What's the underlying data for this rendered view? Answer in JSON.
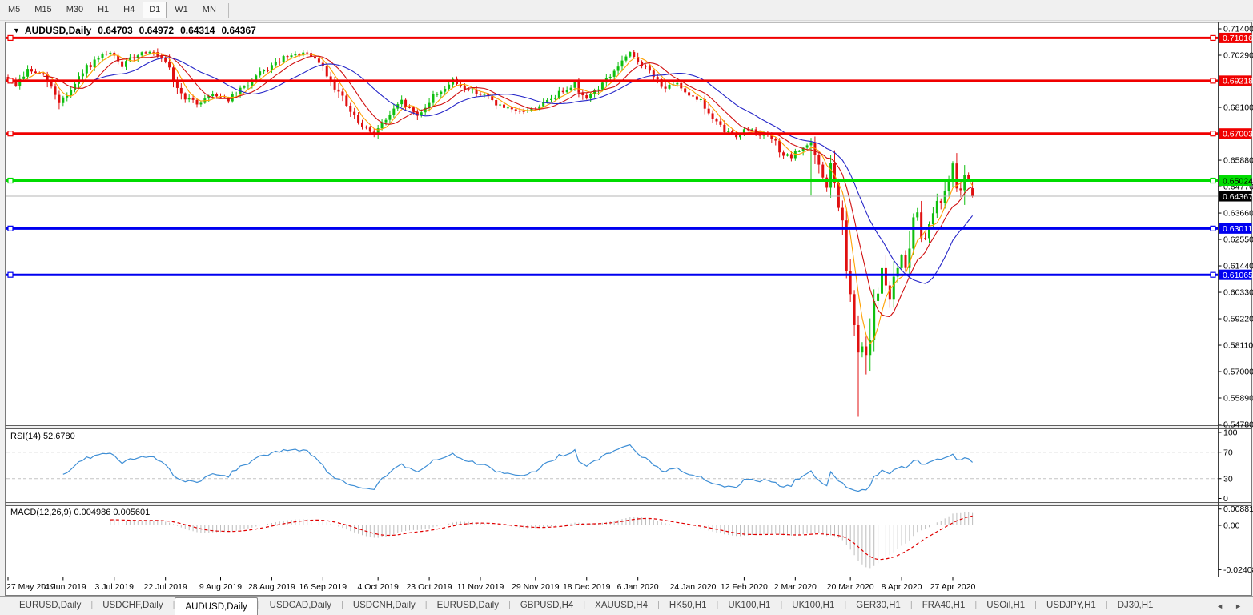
{
  "toolbar": {
    "timeframes": [
      {
        "label": "M5",
        "active": false
      },
      {
        "label": "M15",
        "active": false
      },
      {
        "label": "M30",
        "active": false
      },
      {
        "label": "H1",
        "active": false
      },
      {
        "label": "H4",
        "active": false
      },
      {
        "label": "D1",
        "active": true
      },
      {
        "label": "W1",
        "active": false
      },
      {
        "label": "MN",
        "active": false
      }
    ]
  },
  "chart": {
    "symbol_title": "AUDUSD,Daily",
    "ohlc": {
      "open": "0.64703",
      "high": "0.64972",
      "low": "0.64314",
      "close": "0.64367"
    },
    "rsi_label": "RSI(14) 52.6780",
    "macd_label": "MACD(12,26,9) 0.004986 0.005601"
  },
  "chart_data": {
    "type": "candlestick",
    "symbol": "AUDUSD",
    "timeframe": "Daily",
    "bars": 246,
    "current_bar": {
      "open": 0.64703,
      "high": 0.64972,
      "low": 0.64314,
      "close": 0.64367
    },
    "price_axis": {
      "min": 0.5478,
      "max": 0.714,
      "ticks": [
        "0.71400",
        "0.70290",
        "0.68100",
        "0.65880",
        "0.64770",
        "0.63660",
        "0.62550",
        "0.61440",
        "0.60330",
        "0.59220",
        "0.58110",
        "0.57000",
        "0.55890",
        "0.54780"
      ]
    },
    "x_axis_labels": [
      {
        "index": 0,
        "label": "27 May 2019"
      },
      {
        "index": 14,
        "label": "14 Jun 2019"
      },
      {
        "index": 27,
        "label": "3 Jul 2019"
      },
      {
        "index": 40,
        "label": "22 Jul 2019"
      },
      {
        "index": 54,
        "label": "9 Aug 2019"
      },
      {
        "index": 67,
        "label": "28 Aug 2019"
      },
      {
        "index": 80,
        "label": "16 Sep 2019"
      },
      {
        "index": 94,
        "label": "4 Oct 2019"
      },
      {
        "index": 107,
        "label": "23 Oct 2019"
      },
      {
        "index": 120,
        "label": "11 Nov 2019"
      },
      {
        "index": 134,
        "label": "29 Nov 2019"
      },
      {
        "index": 147,
        "label": "18 Dec 2019"
      },
      {
        "index": 160,
        "label": "6 Jan 2020"
      },
      {
        "index": 174,
        "label": "24 Jan 2020"
      },
      {
        "index": 187,
        "label": "12 Feb 2020"
      },
      {
        "index": 200,
        "label": "2 Mar 2020"
      },
      {
        "index": 214,
        "label": "20 Mar 2020"
      },
      {
        "index": 227,
        "label": "8 Apr 2020"
      },
      {
        "index": 240,
        "label": "27 Apr 2020"
      }
    ],
    "close_anchors": [
      [
        0,
        0.6925
      ],
      [
        2,
        0.6905
      ],
      [
        5,
        0.6965
      ],
      [
        9,
        0.6945
      ],
      [
        13,
        0.6835
      ],
      [
        16,
        0.688
      ],
      [
        20,
        0.6975
      ],
      [
        24,
        0.7025
      ],
      [
        26,
        0.7035
      ],
      [
        29,
        0.6985
      ],
      [
        33,
        0.7035
      ],
      [
        36,
        0.7048
      ],
      [
        40,
        0.6995
      ],
      [
        44,
        0.686
      ],
      [
        48,
        0.6825
      ],
      [
        52,
        0.6868
      ],
      [
        56,
        0.6842
      ],
      [
        60,
        0.6895
      ],
      [
        64,
        0.695
      ],
      [
        70,
        0.7015
      ],
      [
        75,
        0.7038
      ],
      [
        79,
        0.7
      ],
      [
        83,
        0.69
      ],
      [
        87,
        0.679
      ],
      [
        90,
        0.6725
      ],
      [
        93,
        0.6702
      ],
      [
        96,
        0.676
      ],
      [
        100,
        0.6832
      ],
      [
        104,
        0.6775
      ],
      [
        108,
        0.6855
      ],
      [
        113,
        0.6918
      ],
      [
        117,
        0.6885
      ],
      [
        121,
        0.6862
      ],
      [
        125,
        0.6815
      ],
      [
        129,
        0.6788
      ],
      [
        133,
        0.6802
      ],
      [
        137,
        0.6835
      ],
      [
        141,
        0.6882
      ],
      [
        144,
        0.6912
      ],
      [
        146,
        0.6845
      ],
      [
        149,
        0.6878
      ],
      [
        153,
        0.6942
      ],
      [
        156,
        0.7002
      ],
      [
        158,
        0.7032
      ],
      [
        161,
        0.6992
      ],
      [
        164,
        0.6938
      ],
      [
        167,
        0.6892
      ],
      [
        170,
        0.6906
      ],
      [
        173,
        0.6868
      ],
      [
        176,
        0.6838
      ],
      [
        179,
        0.6758
      ],
      [
        182,
        0.6712
      ],
      [
        185,
        0.6692
      ],
      [
        188,
        0.6722
      ],
      [
        191,
        0.67
      ],
      [
        194,
        0.6678
      ],
      [
        197,
        0.6612
      ],
      [
        199,
        0.6598
      ],
      [
        202,
        0.6645
      ],
      [
        204,
        0.666
      ],
      [
        206,
        0.6545
      ],
      [
        208,
        0.6482
      ],
      [
        209,
        0.6558
      ],
      [
        210,
        0.6478
      ],
      [
        211,
        0.6395
      ],
      [
        212,
        0.6288
      ],
      [
        213,
        0.6142
      ],
      [
        214,
        0.5978
      ],
      [
        215,
        0.5872
      ],
      [
        216,
        0.5772
      ],
      [
        217,
        0.5808
      ],
      [
        218,
        0.5738
      ],
      [
        219,
        0.5902
      ],
      [
        220,
        0.5968
      ],
      [
        221,
        0.6042
      ],
      [
        222,
        0.6128
      ],
      [
        223,
        0.6048
      ],
      [
        224,
        0.5982
      ],
      [
        225,
        0.6092
      ],
      [
        226,
        0.6158
      ],
      [
        227,
        0.6178
      ],
      [
        228,
        0.6132
      ],
      [
        229,
        0.6252
      ],
      [
        230,
        0.6318
      ],
      [
        231,
        0.6368
      ],
      [
        232,
        0.6292
      ],
      [
        233,
        0.6262
      ],
      [
        234,
        0.6322
      ],
      [
        235,
        0.6385
      ],
      [
        236,
        0.6442
      ],
      [
        237,
        0.6405
      ],
      [
        238,
        0.6468
      ],
      [
        239,
        0.6528
      ],
      [
        240,
        0.6558
      ],
      [
        241,
        0.6498
      ],
      [
        242,
        0.6462
      ],
      [
        243,
        0.6552
      ],
      [
        244,
        0.6518
      ],
      [
        245,
        0.64367
      ]
    ],
    "extremes": [
      {
        "index": 158,
        "high": 0.7045
      },
      {
        "index": 204,
        "high": 0.6682,
        "low": 0.644
      },
      {
        "index": 216,
        "low": 0.551
      },
      {
        "index": 218,
        "low": 0.5688
      }
    ],
    "levels": [
      {
        "price": 0.71016,
        "label": "0.71016",
        "color": "#f00000",
        "text": "#ffffff"
      },
      {
        "price": 0.69218,
        "label": "0.69218",
        "color": "#f00000",
        "text": "#ffffff"
      },
      {
        "price": 0.67003,
        "label": "0.67003",
        "color": "#f00000",
        "text": "#ffffff"
      },
      {
        "price": 0.65024,
        "label": "0.65024",
        "color": "#00dc00",
        "text": "#000000"
      },
      {
        "price": 0.63011,
        "label": "0.63011",
        "color": "#0000f0",
        "text": "#ffffff"
      },
      {
        "price": 0.61065,
        "label": "0.61065",
        "color": "#0000f0",
        "text": "#ffffff"
      }
    ],
    "bid_line": {
      "price": 0.64367,
      "label": "0.64367",
      "line_color": "#b4b4b4",
      "box_color": "#000000",
      "text": "#ffffff"
    },
    "moving_averages": [
      {
        "period": 5,
        "color": "#ffa000",
        "name": "fast"
      },
      {
        "period": 10,
        "color": "#d01010",
        "name": "medium"
      },
      {
        "period": 21,
        "color": "#2626c8",
        "name": "slow"
      }
    ],
    "rsi": {
      "period": 14,
      "value": "52.6780",
      "color": "#3f8fd6",
      "level_lines": [
        70,
        30
      ],
      "axis_ticks": [
        "100",
        "70",
        "30",
        "0"
      ],
      "scale_max": 100,
      "scale_min": 0
    },
    "macd": {
      "fast": 12,
      "slow": 26,
      "signal_period": 9,
      "main_value": "0.004986",
      "signal_value": "0.005601",
      "axis_ticks": [
        "0.008815",
        "0.00",
        "-0.024082"
      ],
      "scale_max": 0.008815,
      "scale_min": -0.024082,
      "histogram_color": "#bdbdbd",
      "signal_color": "#e00000"
    }
  },
  "tabs": {
    "items": [
      {
        "label": "EURUSD,Daily",
        "active": false
      },
      {
        "label": "USDCHF,Daily",
        "active": false
      },
      {
        "label": "AUDUSD,Daily",
        "active": true
      },
      {
        "label": "USDCAD,Daily",
        "active": false
      },
      {
        "label": "USDCNH,Daily",
        "active": false
      },
      {
        "label": "EURUSD,Daily",
        "active": false
      },
      {
        "label": "GBPUSD,H4",
        "active": false
      },
      {
        "label": "XAUUSD,H4",
        "active": false
      },
      {
        "label": "HK50,H1",
        "active": false
      },
      {
        "label": "UK100,H1",
        "active": false
      },
      {
        "label": "UK100,H1",
        "active": false
      },
      {
        "label": "GER30,H1",
        "active": false
      },
      {
        "label": "FRA40,H1",
        "active": false
      },
      {
        "label": "USOil,H1",
        "active": false
      },
      {
        "label": "USDJPY,H1",
        "active": false
      },
      {
        "label": "DJ30,H1",
        "active": false
      }
    ],
    "left_arrow": "◄",
    "right_arrow": "►"
  }
}
